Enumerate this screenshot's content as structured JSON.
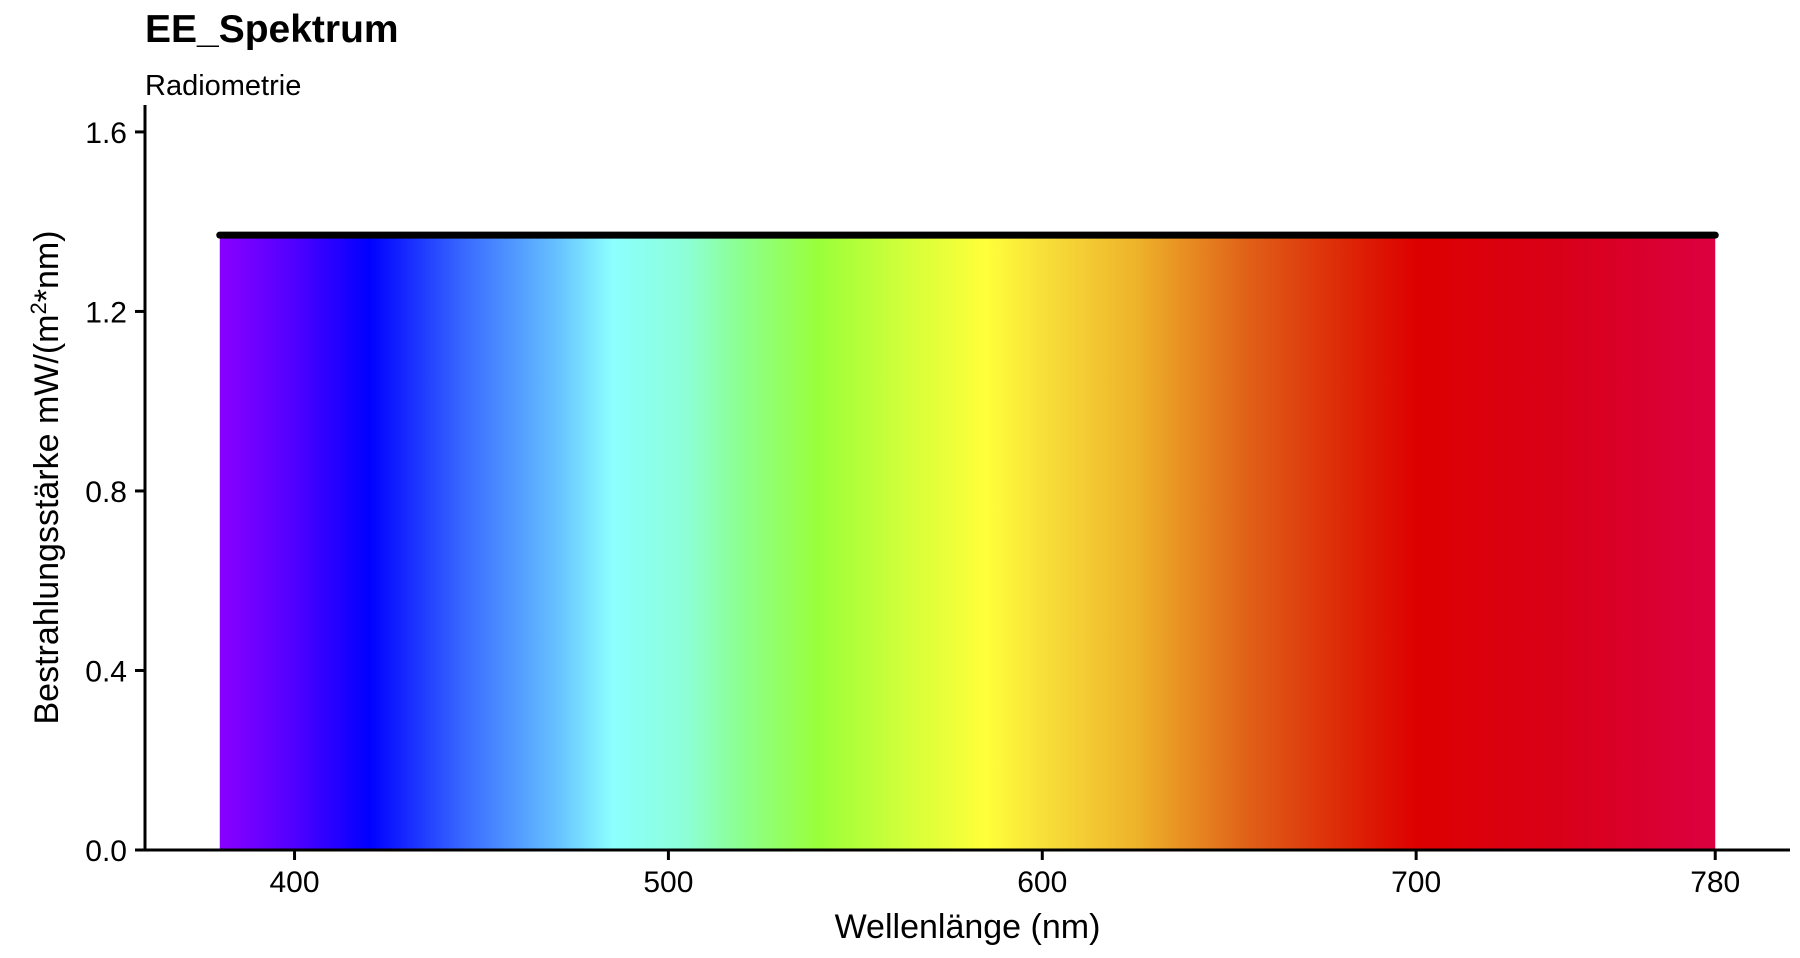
{
  "chart_data": {
    "type": "area",
    "title": "EE_Spektrum",
    "subtitle": "Radiometrie",
    "xlabel": "Wellenlänge (nm)",
    "ylabel_main": "Bestrahlungsstärke  mW/(m",
    "ylabel_sup": "2",
    "ylabel_tail": "*nm)",
    "xlim": [
      360,
      800
    ],
    "ylim": [
      0,
      1.66
    ],
    "x_ticks": [
      400,
      500,
      600,
      700,
      780
    ],
    "y_ticks": [
      0.0,
      0.4,
      0.8,
      1.2,
      1.6
    ],
    "y_tick_labels": [
      "0.0",
      "0.4",
      "0.8",
      "1.2",
      "1.6"
    ],
    "series": [
      {
        "x": [
          380,
          780
        ],
        "y": [
          1.37,
          1.37
        ]
      }
    ],
    "fill_gradient": [
      {
        "wavelength": 380,
        "color": "#8a00ff"
      },
      {
        "wavelength": 400,
        "color": "#5000ff"
      },
      {
        "wavelength": 420,
        "color": "#0000ff"
      },
      {
        "wavelength": 445,
        "color": "#3868ff"
      },
      {
        "wavelength": 470,
        "color": "#66c0ff"
      },
      {
        "wavelength": 485,
        "color": "#8cffff"
      },
      {
        "wavelength": 505,
        "color": "#8cffd6"
      },
      {
        "wavelength": 520,
        "color": "#8cff8c"
      },
      {
        "wavelength": 540,
        "color": "#99ff3a"
      },
      {
        "wavelength": 565,
        "color": "#d6ff3a"
      },
      {
        "wavelength": 585,
        "color": "#ffff3a"
      },
      {
        "wavelength": 600,
        "color": "#f8e03a"
      },
      {
        "wavelength": 625,
        "color": "#eeb32a"
      },
      {
        "wavelength": 655,
        "color": "#e06018"
      },
      {
        "wavelength": 680,
        "color": "#dd2a08"
      },
      {
        "wavelength": 700,
        "color": "#dd0000"
      },
      {
        "wavelength": 740,
        "color": "#d8001a"
      },
      {
        "wavelength": 780,
        "color": "#dc0040"
      }
    ],
    "line_color": "#000000",
    "grid": false,
    "legend": "none"
  }
}
